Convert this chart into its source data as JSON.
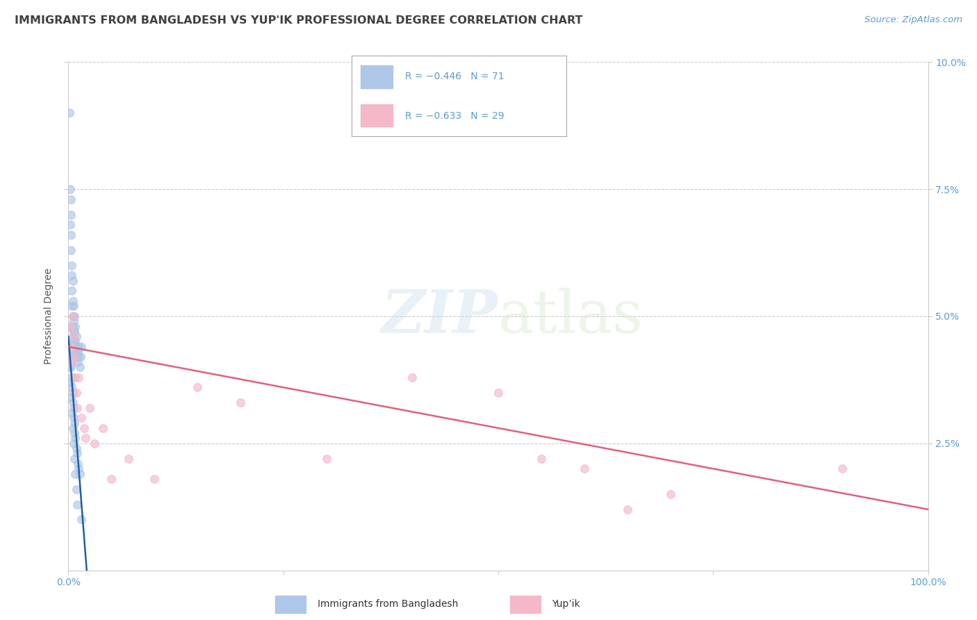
{
  "title": "IMMIGRANTS FROM BANGLADESH VS YUP'IK PROFESSIONAL DEGREE CORRELATION CHART",
  "source": "Source: ZipAtlas.com",
  "ylabel": "Professional Degree",
  "xlim": [
    0,
    1.0
  ],
  "ylim": [
    0,
    0.1
  ],
  "ytick_values": [
    0.025,
    0.05,
    0.075,
    0.1
  ],
  "ytick_labels": [
    "2.5%",
    "5.0%",
    "7.5%",
    "10.0%"
  ],
  "watermark_zip": "ZIP",
  "watermark_atlas": "atlas",
  "legend_blue_text": "R = −0.446   N = 71",
  "legend_pink_text": "R = −0.633   N = 29",
  "legend_blue_label": "Immigrants from Bangladesh",
  "legend_pink_label": "Yup’ik",
  "blue_scatter_color": "#aec6e8",
  "pink_scatter_color": "#f4b8c8",
  "blue_line_color": "#1f5fa6",
  "pink_line_color": "#e0607e",
  "bg_color": "#ffffff",
  "grid_color": "#cccccc",
  "tick_color": "#5b9bd5",
  "title_color": "#404040",
  "source_color": "#5b9bd5",
  "blue_points_x": [
    0.001,
    0.002,
    0.002,
    0.003,
    0.003,
    0.003,
    0.003,
    0.004,
    0.004,
    0.004,
    0.004,
    0.005,
    0.005,
    0.005,
    0.005,
    0.005,
    0.005,
    0.006,
    0.006,
    0.006,
    0.006,
    0.007,
    0.007,
    0.007,
    0.007,
    0.008,
    0.008,
    0.008,
    0.009,
    0.009,
    0.009,
    0.01,
    0.01,
    0.011,
    0.011,
    0.012,
    0.012,
    0.013,
    0.014,
    0.015,
    0.001,
    0.001,
    0.002,
    0.002,
    0.003,
    0.003,
    0.004,
    0.004,
    0.005,
    0.005,
    0.006,
    0.006,
    0.007,
    0.007,
    0.008,
    0.009,
    0.01,
    0.011,
    0.012,
    0.013,
    0.001,
    0.002,
    0.003,
    0.004,
    0.005,
    0.006,
    0.007,
    0.008,
    0.009,
    0.01,
    0.015
  ],
  "blue_points_y": [
    0.09,
    0.075,
    0.068,
    0.073,
    0.07,
    0.066,
    0.063,
    0.06,
    0.058,
    0.055,
    0.052,
    0.057,
    0.053,
    0.05,
    0.048,
    0.046,
    0.044,
    0.052,
    0.049,
    0.047,
    0.045,
    0.05,
    0.047,
    0.044,
    0.042,
    0.048,
    0.045,
    0.043,
    0.046,
    0.044,
    0.042,
    0.044,
    0.042,
    0.043,
    0.041,
    0.044,
    0.042,
    0.04,
    0.042,
    0.044,
    0.048,
    0.045,
    0.043,
    0.041,
    0.042,
    0.04,
    0.038,
    0.036,
    0.035,
    0.033,
    0.032,
    0.03,
    0.029,
    0.027,
    0.026,
    0.024,
    0.023,
    0.021,
    0.02,
    0.019,
    0.04,
    0.037,
    0.034,
    0.031,
    0.028,
    0.025,
    0.022,
    0.019,
    0.016,
    0.013,
    0.01
  ],
  "pink_points_x": [
    0.002,
    0.003,
    0.004,
    0.005,
    0.006,
    0.007,
    0.008,
    0.009,
    0.01,
    0.012,
    0.015,
    0.018,
    0.02,
    0.025,
    0.03,
    0.04,
    0.05,
    0.07,
    0.1,
    0.15,
    0.2,
    0.3,
    0.4,
    0.5,
    0.55,
    0.6,
    0.65,
    0.7,
    0.9
  ],
  "pink_points_y": [
    0.048,
    0.044,
    0.041,
    0.05,
    0.046,
    0.042,
    0.038,
    0.035,
    0.032,
    0.038,
    0.03,
    0.028,
    0.026,
    0.032,
    0.025,
    0.028,
    0.018,
    0.022,
    0.018,
    0.036,
    0.033,
    0.022,
    0.038,
    0.035,
    0.022,
    0.02,
    0.012,
    0.015,
    0.02
  ],
  "blue_line_x": [
    0.0,
    0.025
  ],
  "blue_line_y": [
    0.046,
    -0.008
  ],
  "pink_line_x": [
    0.0,
    1.0
  ],
  "pink_line_y": [
    0.044,
    0.012
  ],
  "marker_size": 70,
  "alpha": 0.65,
  "title_fontsize": 11.5,
  "label_fontsize": 10,
  "tick_fontsize": 10,
  "source_fontsize": 9.5
}
